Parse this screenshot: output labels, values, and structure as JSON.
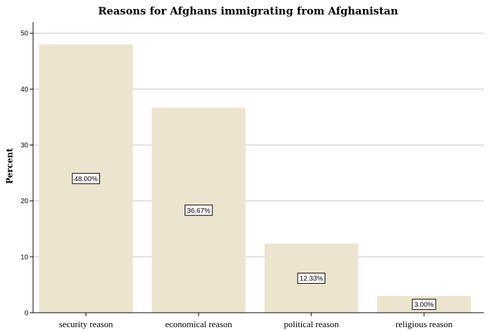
{
  "chart_data": {
    "type": "bar",
    "title": "Reasons for Afghans immigrating from Afghanistan",
    "ylabel": "Percent",
    "xlabel": "",
    "categories": [
      "security reason",
      "economical reason",
      "political reason",
      "religious reason"
    ],
    "values": [
      48.0,
      36.67,
      12.33,
      3.0
    ],
    "data_labels": [
      "48.00%",
      "36.67%",
      "12.33%",
      "3.00%"
    ],
    "ylim": [
      0,
      52
    ],
    "yticks": [
      0,
      10,
      20,
      30,
      40,
      50
    ],
    "grid": true,
    "legend": "none",
    "bar_color": "#ede4cf",
    "grid_color": "#d4d4d4"
  }
}
